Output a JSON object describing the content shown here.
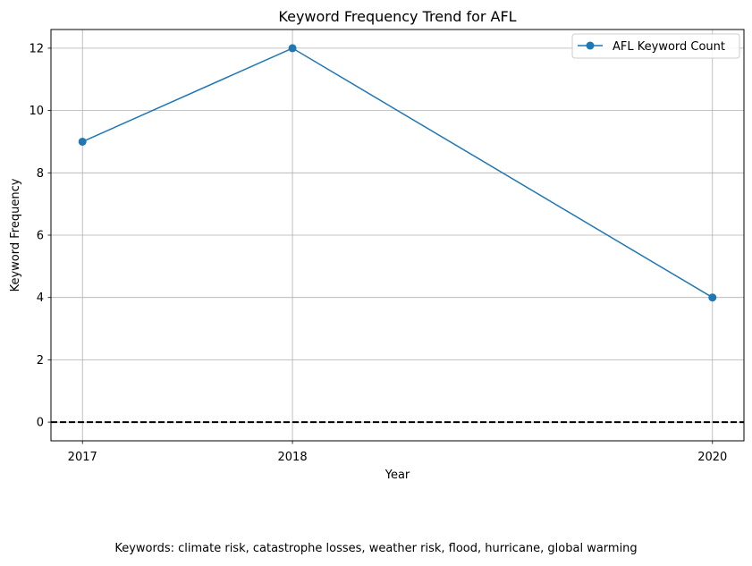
{
  "chart_data": {
    "type": "line",
    "title": "Keyword Frequency Trend for AFL",
    "xlabel": "Year",
    "ylabel": "Keyword Frequency",
    "x": [
      2017,
      2018,
      2020
    ],
    "xticks": [
      "2017",
      "2018",
      "2020"
    ],
    "xlim": [
      2016.85,
      2020.15
    ],
    "ylim": [
      -0.6,
      12.6
    ],
    "yticks": [
      0,
      2,
      4,
      6,
      8,
      10,
      12
    ],
    "grid": true,
    "legend_position": "top-right",
    "reference_line": {
      "y": 0,
      "style": "dashed",
      "color": "#000000"
    },
    "series": [
      {
        "name": "AFL Keyword Count",
        "values": [
          9,
          12,
          4
        ],
        "color": "#1f77b4",
        "marker": "circle"
      }
    ]
  },
  "footnote": "Keywords: climate risk, catastrophe losses, weather risk, flood, hurricane, global warming"
}
